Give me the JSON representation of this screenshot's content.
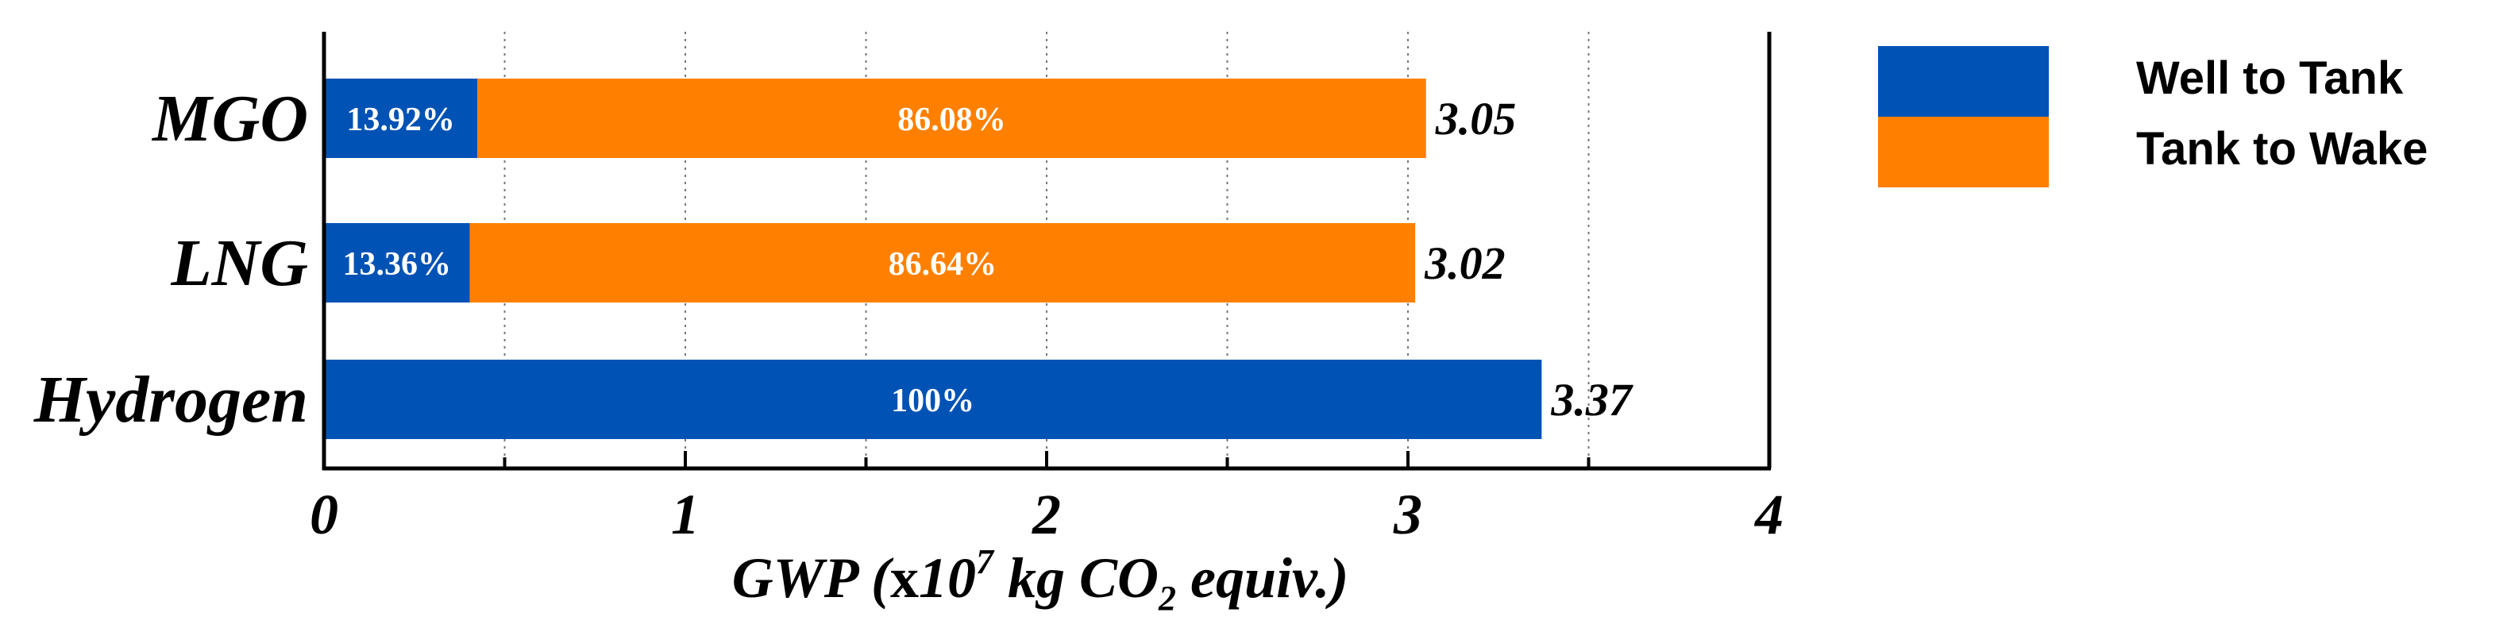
{
  "chart_data": {
    "type": "bar",
    "orientation": "horizontal",
    "stacked": true,
    "categories": [
      "MGO",
      "LNG",
      "Hydrogen"
    ],
    "series": [
      {
        "name": "Well to Tank",
        "color": "#0052b4",
        "values": [
          0.4246,
          0.4035,
          3.37
        ],
        "labels": [
          "13.92%",
          "13.36%",
          "100%"
        ]
      },
      {
        "name": "Tank to Wake",
        "color": "#ff8000",
        "values": [
          2.6254,
          2.6165,
          0
        ],
        "labels": [
          "86.08%",
          "86.64%",
          ""
        ]
      }
    ],
    "totals": [
      "3.05",
      "3.02",
      "3.37"
    ],
    "xlim": [
      0,
      4
    ],
    "xticks": [
      "0",
      "1",
      "2",
      "3",
      "4"
    ],
    "xlabel_parts": {
      "pre": "GWP (",
      "times": "x",
      "base": "10",
      "exp": "7",
      "mid": " kg CO",
      "sub": "2",
      "post": " equiv.)"
    },
    "grid": "vertical dotted at half-units",
    "legend_position": "right"
  }
}
